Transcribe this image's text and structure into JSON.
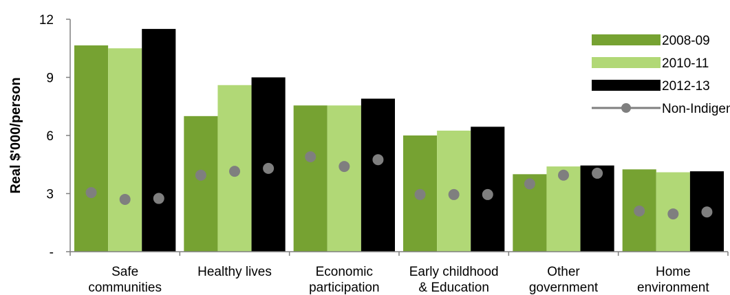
{
  "chart_data": {
    "type": "bar",
    "title": "",
    "ylabel": "Real $'000/person",
    "xlabel": "",
    "ylim": [
      0,
      12
    ],
    "yticks": [
      {
        "value": 0,
        "label": "-"
      },
      {
        "value": 3,
        "label": "3"
      },
      {
        "value": 6,
        "label": "6"
      },
      {
        "value": 9,
        "label": "9"
      },
      {
        "value": 12,
        "label": "12"
      }
    ],
    "categories": [
      [
        "Safe",
        "communities"
      ],
      [
        "Healthy lives"
      ],
      [
        "Economic",
        "participation"
      ],
      [
        "Early childhood",
        "& Education"
      ],
      [
        "Other",
        "government"
      ],
      [
        "Home",
        "environment"
      ]
    ],
    "series": [
      {
        "name": "2008-09",
        "type": "bar",
        "color": "#76a232",
        "values": [
          10.65,
          7.0,
          7.55,
          6.0,
          4.0,
          4.25
        ]
      },
      {
        "name": "2010-11",
        "type": "bar",
        "color": "#b1d876",
        "values": [
          10.5,
          8.6,
          7.55,
          6.25,
          4.4,
          4.1
        ]
      },
      {
        "name": "2012-13",
        "type": "bar",
        "color": "#000000",
        "values": [
          11.5,
          9.0,
          7.9,
          6.45,
          4.45,
          4.15
        ]
      },
      {
        "name": "Non-Indigenous",
        "type": "dot",
        "color": "#7f7f7f",
        "values": [
          [
            3.05,
            2.7,
            2.75
          ],
          [
            3.95,
            4.15,
            4.3
          ],
          [
            4.9,
            4.4,
            4.75
          ],
          [
            2.95,
            2.95,
            2.95
          ],
          [
            3.5,
            3.95,
            4.05
          ],
          [
            2.1,
            1.95,
            2.05
          ]
        ]
      }
    ],
    "legend_position": "top-right",
    "grid": false
  }
}
